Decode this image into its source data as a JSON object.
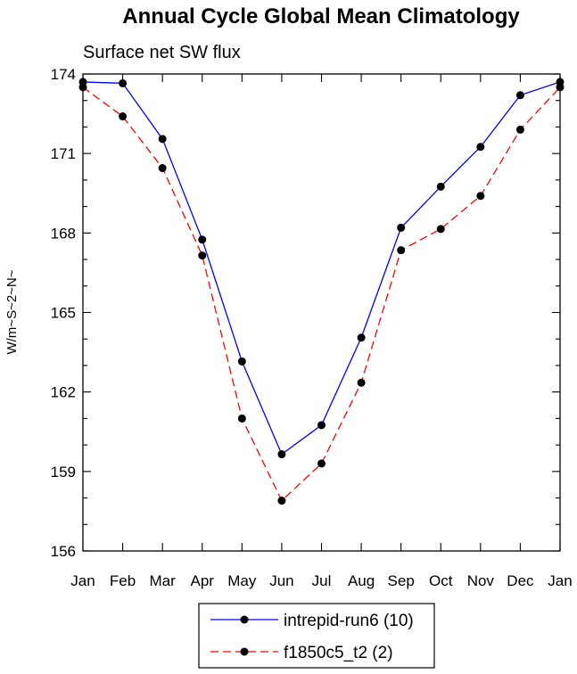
{
  "chart_data": {
    "type": "line",
    "title": "Annual Cycle Global Mean Climatology",
    "subtitle": "Surface net SW flux",
    "xlabel": "",
    "ylabel": "W/m~S~2~N~",
    "categories": [
      "Jan",
      "Feb",
      "Mar",
      "Apr",
      "May",
      "Jun",
      "Jul",
      "Aug",
      "Sep",
      "Oct",
      "Nov",
      "Dec",
      "Jan"
    ],
    "ylim": [
      156,
      174
    ],
    "yticks": [
      "174",
      "171",
      "168",
      "165",
      "162",
      "159",
      "156"
    ],
    "series": [
      {
        "name": "intrepid-run6 (10)",
        "color": "#0000ff",
        "dash": "solid",
        "values": [
          173.7,
          173.65,
          171.55,
          167.75,
          163.15,
          159.65,
          160.75,
          164.05,
          168.2,
          169.75,
          171.25,
          173.2,
          173.7
        ]
      },
      {
        "name": "f1850c5_t2 (2)",
        "color": "#ff0000",
        "dash": "dashed",
        "values": [
          173.5,
          172.4,
          170.45,
          167.15,
          161.0,
          157.9,
          159.3,
          162.35,
          167.35,
          168.15,
          169.4,
          171.9,
          173.5
        ]
      }
    ],
    "legend": "bottom-center"
  }
}
